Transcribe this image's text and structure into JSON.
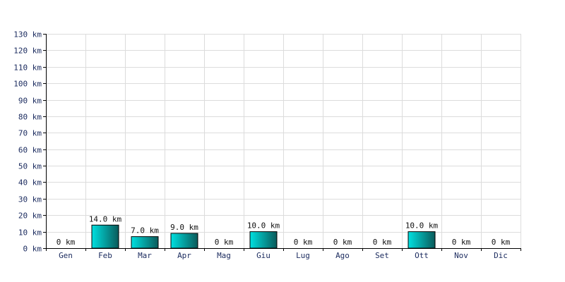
{
  "chart_data": {
    "type": "bar",
    "title": "",
    "xlabel": "",
    "ylabel": "",
    "unit": "km",
    "categories": [
      "Gen",
      "Feb",
      "Mar",
      "Apr",
      "Mag",
      "Giu",
      "Lug",
      "Ago",
      "Set",
      "Ott",
      "Nov",
      "Dic"
    ],
    "values": [
      0,
      14.0,
      7.0,
      9.0,
      0,
      10.0,
      0,
      0,
      0,
      10.0,
      0,
      0
    ],
    "data_labels": [
      "0 km",
      "14.0 km",
      "7.0 km",
      "9.0 km",
      "0 km",
      "10.0 km",
      "0 km",
      "0 km",
      "0 km",
      "10.0 km",
      "0 km",
      "0 km"
    ],
    "ylim": [
      0,
      130
    ],
    "y_ticks": [
      0,
      10,
      20,
      30,
      40,
      50,
      60,
      70,
      80,
      90,
      100,
      110,
      120,
      130
    ],
    "y_tick_labels": [
      "0 km",
      "10 km",
      "20 km",
      "30 km",
      "40 km",
      "50 km",
      "60 km",
      "70 km",
      "80 km",
      "90 km",
      "100 km",
      "110 km",
      "120 km",
      "130 km"
    ],
    "grid": true,
    "legend": "none",
    "colors": {
      "bar_top": "#00e0e0",
      "bar_bottom": "#0a5a5a",
      "bar_stroke": "#000000",
      "grid": "#dcdcdc",
      "axis": "#000000",
      "tick_text": "#1a2a5e"
    }
  }
}
